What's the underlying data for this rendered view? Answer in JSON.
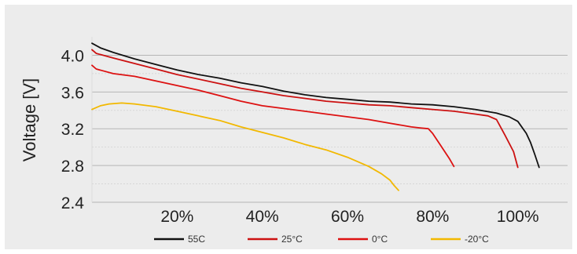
{
  "chart_data": {
    "type": "line",
    "title": "",
    "xlabel": "",
    "ylabel": "Voltage [V]",
    "xlim": [
      0,
      108
    ],
    "ylim": [
      2.4,
      4.2
    ],
    "x_ticks": [
      20,
      40,
      60,
      80,
      100
    ],
    "x_tick_labels": [
      "20%",
      "40%",
      "60%",
      "80%",
      "100%"
    ],
    "y_ticks": [
      2.4,
      2.8,
      3.2,
      3.6,
      4.0
    ],
    "y_tick_labels": [
      "2.4",
      "2.8",
      "3.2",
      "3.6",
      "4.0"
    ],
    "grid": "horizontal",
    "legend_position": "bottom",
    "series": [
      {
        "name": "55C",
        "color": "#111111",
        "x": [
          0,
          2,
          5,
          10,
          15,
          20,
          25,
          30,
          35,
          40,
          45,
          50,
          55,
          60,
          65,
          70,
          75,
          80,
          85,
          90,
          95,
          98,
          100,
          102,
          103,
          104,
          105
        ],
        "y": [
          4.13,
          4.08,
          4.03,
          3.96,
          3.9,
          3.84,
          3.79,
          3.75,
          3.7,
          3.66,
          3.61,
          3.57,
          3.54,
          3.52,
          3.5,
          3.49,
          3.47,
          3.46,
          3.44,
          3.41,
          3.37,
          3.33,
          3.28,
          3.15,
          3.05,
          2.92,
          2.78
        ]
      },
      {
        "name": "25°C",
        "color": "#cc1111",
        "x": [
          0,
          1,
          5,
          10,
          15,
          20,
          25,
          30,
          35,
          40,
          45,
          50,
          55,
          60,
          65,
          70,
          75,
          80,
          85,
          90,
          93,
          95,
          97,
          99,
          100
        ],
        "y": [
          4.06,
          4.02,
          3.97,
          3.91,
          3.85,
          3.79,
          3.74,
          3.69,
          3.64,
          3.6,
          3.56,
          3.53,
          3.5,
          3.48,
          3.46,
          3.45,
          3.43,
          3.41,
          3.39,
          3.36,
          3.34,
          3.3,
          3.13,
          2.95,
          2.78
        ]
      },
      {
        "name": "0°C",
        "color": "#dd1111",
        "x": [
          0,
          1,
          5,
          10,
          15,
          20,
          25,
          30,
          35,
          40,
          45,
          50,
          55,
          60,
          65,
          70,
          75,
          77,
          79,
          80,
          82,
          84,
          85
        ],
        "y": [
          3.89,
          3.85,
          3.8,
          3.77,
          3.72,
          3.67,
          3.62,
          3.56,
          3.5,
          3.45,
          3.42,
          3.39,
          3.36,
          3.33,
          3.3,
          3.26,
          3.22,
          3.21,
          3.2,
          3.15,
          3.01,
          2.87,
          2.79
        ]
      },
      {
        "name": "-20°C",
        "color": "#f2b800",
        "x": [
          0,
          2,
          4,
          7,
          10,
          15,
          20,
          25,
          30,
          35,
          40,
          45,
          50,
          55,
          60,
          65,
          68,
          70,
          71,
          72
        ],
        "y": [
          3.41,
          3.45,
          3.47,
          3.48,
          3.47,
          3.44,
          3.39,
          3.34,
          3.29,
          3.22,
          3.16,
          3.1,
          3.03,
          2.97,
          2.89,
          2.79,
          2.71,
          2.64,
          2.58,
          2.53
        ]
      }
    ]
  }
}
